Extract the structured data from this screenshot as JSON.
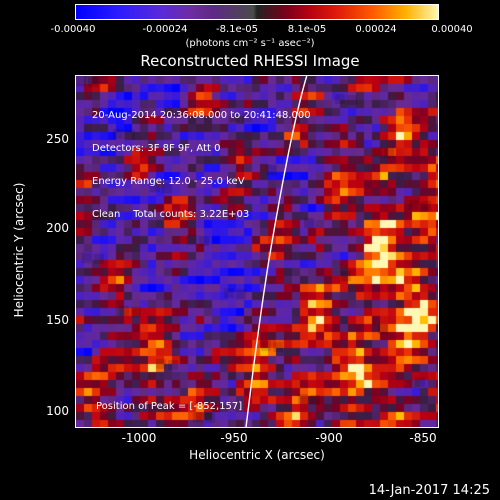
{
  "colorbar": {
    "ticks": [
      "-0.00040",
      "-0.00024",
      "-8.1e-05",
      "8.1e-05",
      "0.00024",
      "0.00040"
    ],
    "units": "(photons cm⁻² s⁻¹ asec⁻²)"
  },
  "title": "Reconstructed RHESSI Image",
  "annotations": {
    "line1": "20-Aug-2014 20:36:08.000 to 20:41:48.000",
    "line2": "Detectors: 3F 8F 9F, Att 0",
    "line3": "Energy Range: 12.0 - 25.0 keV",
    "line4": "Clean    Total counts: 3.22E+03",
    "peak": "Position of Peak = [-852,157]"
  },
  "axes": {
    "x_label": "Heliocentric X (arcsec)",
    "y_label": "Heliocentric Y (arcsec)",
    "x_ticks": [
      "-1000",
      "-950",
      "-900",
      "-850"
    ],
    "y_ticks": [
      "250",
      "200",
      "150",
      "100"
    ]
  },
  "timestamp": "14-Jan-2017 14:25"
}
